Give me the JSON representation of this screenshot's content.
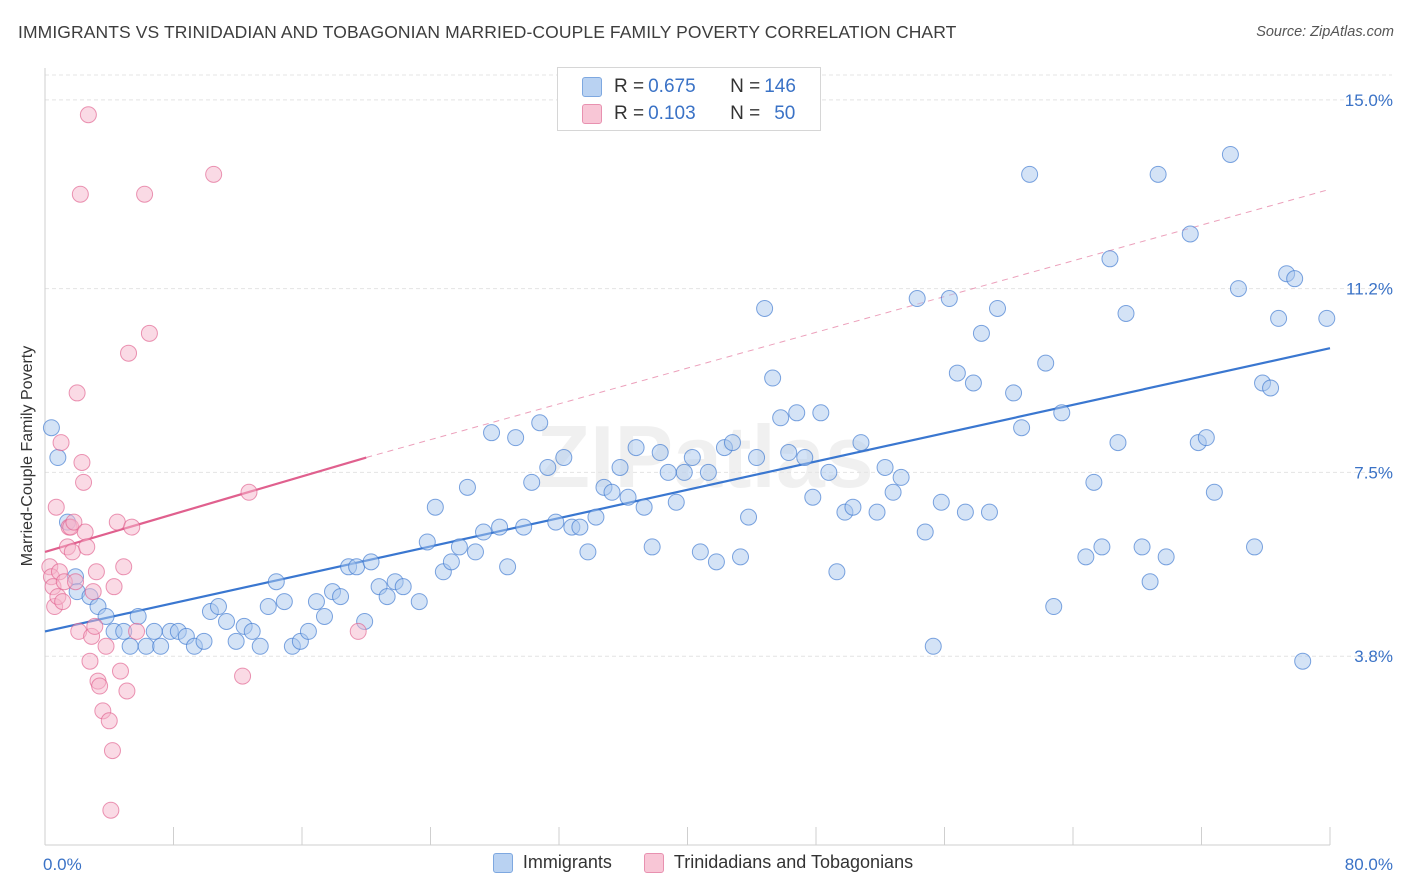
{
  "title": "IMMIGRANTS VS TRINIDADIAN AND TOBAGONIAN MARRIED-COUPLE FAMILY POVERTY CORRELATION CHART",
  "source": "Source: ZipAtlas.com",
  "watermark": "ZIPatlas",
  "colors": {
    "blue": "#3a77d0",
    "blue_fill": "#aac8ee",
    "pink": "#e0608e",
    "pink_fill": "#f5b5cb",
    "grid": "#e4e4e4",
    "tick_text": "#3a72c6"
  },
  "legend_top": [
    {
      "r_label": "R = ",
      "r_value": "0.675",
      "n_label": "N = ",
      "n_value": "146",
      "color": "blue"
    },
    {
      "r_label": "R = ",
      "r_value": "0.103",
      "n_label": "N = ",
      "n_value": "50",
      "color": "pink"
    }
  ],
  "legend_bottom": [
    {
      "label": "Immigrants",
      "color": "blue"
    },
    {
      "label": "Trinidadians and Tobagonians",
      "color": "pink"
    }
  ],
  "chart_data": {
    "type": "scatter",
    "title": "IMMIGRANTS VS TRINIDADIAN AND TOBAGONIAN MARRIED-COUPLE FAMILY POVERTY CORRELATION CHART",
    "xlabel": "",
    "ylabel": "Married-Couple Family Poverty",
    "xlim": [
      0,
      80
    ],
    "ylim": [
      0,
      15.5
    ],
    "x_tick_labels": [
      "0.0%",
      "80.0%"
    ],
    "y_ticks": [
      3.8,
      7.5,
      11.2,
      15.0
    ],
    "y_tick_labels": [
      "3.8%",
      "7.5%",
      "11.2%",
      "15.0%"
    ],
    "grid": true,
    "legend_position": "top-center",
    "series": [
      {
        "name": "Immigrants",
        "color": "blue",
        "trend": {
          "x": [
            0,
            80
          ],
          "y": [
            4.3,
            10.0
          ],
          "style": "solid"
        },
        "points": [
          [
            0.4,
            8.4
          ],
          [
            0.8,
            7.8
          ],
          [
            1.4,
            6.5
          ],
          [
            1.9,
            5.4
          ],
          [
            2.0,
            5.1
          ],
          [
            2.8,
            5.0
          ],
          [
            3.3,
            4.8
          ],
          [
            3.8,
            4.6
          ],
          [
            4.3,
            4.3
          ],
          [
            4.9,
            4.3
          ],
          [
            5.3,
            4.0
          ],
          [
            5.8,
            4.6
          ],
          [
            6.3,
            4.0
          ],
          [
            6.8,
            4.3
          ],
          [
            7.2,
            4.0
          ],
          [
            7.8,
            4.3
          ],
          [
            8.3,
            4.3
          ],
          [
            8.8,
            4.2
          ],
          [
            9.3,
            4.0
          ],
          [
            9.9,
            4.1
          ],
          [
            10.3,
            4.7
          ],
          [
            10.8,
            4.8
          ],
          [
            11.3,
            4.5
          ],
          [
            11.9,
            4.1
          ],
          [
            12.4,
            4.4
          ],
          [
            12.9,
            4.3
          ],
          [
            13.4,
            4.0
          ],
          [
            13.9,
            4.8
          ],
          [
            14.4,
            5.3
          ],
          [
            14.9,
            4.9
          ],
          [
            15.4,
            4.0
          ],
          [
            15.9,
            4.1
          ],
          [
            16.4,
            4.3
          ],
          [
            16.9,
            4.9
          ],
          [
            17.4,
            4.6
          ],
          [
            17.9,
            5.1
          ],
          [
            18.4,
            5.0
          ],
          [
            18.9,
            5.6
          ],
          [
            19.4,
            5.6
          ],
          [
            19.9,
            4.5
          ],
          [
            20.3,
            5.7
          ],
          [
            20.8,
            5.2
          ],
          [
            21.3,
            5.0
          ],
          [
            21.8,
            5.3
          ],
          [
            22.3,
            5.2
          ],
          [
            23.3,
            4.9
          ],
          [
            23.8,
            6.1
          ],
          [
            24.3,
            6.8
          ],
          [
            24.8,
            5.5
          ],
          [
            25.3,
            5.7
          ],
          [
            25.8,
            6.0
          ],
          [
            26.3,
            7.2
          ],
          [
            26.8,
            5.9
          ],
          [
            27.3,
            6.3
          ],
          [
            27.8,
            8.3
          ],
          [
            28.3,
            6.4
          ],
          [
            28.8,
            5.6
          ],
          [
            29.3,
            8.2
          ],
          [
            29.8,
            6.4
          ],
          [
            30.3,
            7.3
          ],
          [
            30.8,
            8.5
          ],
          [
            31.3,
            7.6
          ],
          [
            31.8,
            6.5
          ],
          [
            32.3,
            7.8
          ],
          [
            32.8,
            6.4
          ],
          [
            33.3,
            6.4
          ],
          [
            33.8,
            5.9
          ],
          [
            34.3,
            6.6
          ],
          [
            34.8,
            7.2
          ],
          [
            35.3,
            7.1
          ],
          [
            35.8,
            7.6
          ],
          [
            36.3,
            7.0
          ],
          [
            36.8,
            8.0
          ],
          [
            37.3,
            6.8
          ],
          [
            37.8,
            6.0
          ],
          [
            38.3,
            7.9
          ],
          [
            38.8,
            7.5
          ],
          [
            39.3,
            6.9
          ],
          [
            39.8,
            7.5
          ],
          [
            40.3,
            7.8
          ],
          [
            40.8,
            5.9
          ],
          [
            41.3,
            7.5
          ],
          [
            41.8,
            5.7
          ],
          [
            42.3,
            8.0
          ],
          [
            42.8,
            8.1
          ],
          [
            43.3,
            5.8
          ],
          [
            43.8,
            6.6
          ],
          [
            44.3,
            7.8
          ],
          [
            44.8,
            10.8
          ],
          [
            45.3,
            9.4
          ],
          [
            45.8,
            8.6
          ],
          [
            46.3,
            7.9
          ],
          [
            46.8,
            8.7
          ],
          [
            47.3,
            7.8
          ],
          [
            47.8,
            7.0
          ],
          [
            48.3,
            8.7
          ],
          [
            48.8,
            7.5
          ],
          [
            49.3,
            5.5
          ],
          [
            49.8,
            6.7
          ],
          [
            50.3,
            6.8
          ],
          [
            50.8,
            8.1
          ],
          [
            51.8,
            6.7
          ],
          [
            52.3,
            7.6
          ],
          [
            52.8,
            7.1
          ],
          [
            53.3,
            7.4
          ],
          [
            54.3,
            11.0
          ],
          [
            54.8,
            6.3
          ],
          [
            55.3,
            4.0
          ],
          [
            55.8,
            6.9
          ],
          [
            56.3,
            11.0
          ],
          [
            56.8,
            9.5
          ],
          [
            57.3,
            6.7
          ],
          [
            57.8,
            9.3
          ],
          [
            58.3,
            10.3
          ],
          [
            58.8,
            6.7
          ],
          [
            59.3,
            10.8
          ],
          [
            60.3,
            9.1
          ],
          [
            60.8,
            8.4
          ],
          [
            61.3,
            13.5
          ],
          [
            62.3,
            9.7
          ],
          [
            62.8,
            4.8
          ],
          [
            63.3,
            8.7
          ],
          [
            64.8,
            5.8
          ],
          [
            65.3,
            7.3
          ],
          [
            65.8,
            6.0
          ],
          [
            66.3,
            11.8
          ],
          [
            66.8,
            8.1
          ],
          [
            67.3,
            10.7
          ],
          [
            68.3,
            6.0
          ],
          [
            68.8,
            5.3
          ],
          [
            69.3,
            13.5
          ],
          [
            69.8,
            5.8
          ],
          [
            71.3,
            12.3
          ],
          [
            71.8,
            8.1
          ],
          [
            72.3,
            8.2
          ],
          [
            72.8,
            7.1
          ],
          [
            73.8,
            13.9
          ],
          [
            74.3,
            11.2
          ],
          [
            75.3,
            6.0
          ],
          [
            75.8,
            9.3
          ],
          [
            76.3,
            9.2
          ],
          [
            76.8,
            10.6
          ],
          [
            77.3,
            11.5
          ],
          [
            77.8,
            11.4
          ],
          [
            78.3,
            3.7
          ],
          [
            79.8,
            10.6
          ]
        ]
      },
      {
        "name": "Trinidadians and Tobagonians",
        "color": "pink",
        "trend": {
          "x": [
            0,
            20
          ],
          "y": [
            5.9,
            7.8
          ],
          "style": "solid",
          "extended": {
            "x": [
              20,
              80
            ],
            "y": [
              7.8,
              13.2
            ],
            "style": "dashed"
          }
        },
        "points": [
          [
            0.3,
            5.6
          ],
          [
            0.4,
            5.4
          ],
          [
            0.5,
            5.2
          ],
          [
            0.6,
            4.8
          ],
          [
            0.7,
            6.8
          ],
          [
            0.8,
            5.0
          ],
          [
            0.9,
            5.5
          ],
          [
            1.0,
            8.1
          ],
          [
            1.2,
            5.3
          ],
          [
            1.4,
            6.0
          ],
          [
            1.5,
            6.4
          ],
          [
            1.6,
            6.4
          ],
          [
            1.7,
            5.9
          ],
          [
            1.8,
            6.5
          ],
          [
            1.9,
            5.3
          ],
          [
            2.0,
            9.1
          ],
          [
            2.1,
            4.3
          ],
          [
            2.2,
            13.1
          ],
          [
            2.3,
            7.7
          ],
          [
            2.4,
            7.3
          ],
          [
            2.5,
            6.3
          ],
          [
            2.6,
            6.0
          ],
          [
            2.7,
            14.7
          ],
          [
            2.8,
            3.7
          ],
          [
            2.9,
            4.2
          ],
          [
            3.0,
            5.1
          ],
          [
            3.1,
            4.4
          ],
          [
            3.2,
            5.5
          ],
          [
            3.3,
            3.3
          ],
          [
            3.4,
            3.2
          ],
          [
            3.6,
            2.7
          ],
          [
            3.8,
            4.0
          ],
          [
            4.0,
            2.5
          ],
          [
            4.1,
            0.7
          ],
          [
            4.2,
            1.9
          ],
          [
            4.3,
            5.2
          ],
          [
            4.5,
            6.5
          ],
          [
            4.7,
            3.5
          ],
          [
            4.9,
            5.6
          ],
          [
            5.1,
            3.1
          ],
          [
            5.2,
            9.9
          ],
          [
            5.4,
            6.4
          ],
          [
            5.7,
            4.3
          ],
          [
            6.2,
            13.1
          ],
          [
            6.5,
            10.3
          ],
          [
            10.5,
            13.5
          ],
          [
            12.7,
            7.1
          ],
          [
            19.5,
            4.3
          ],
          [
            12.3,
            3.4
          ],
          [
            1.1,
            4.9
          ]
        ]
      }
    ]
  }
}
